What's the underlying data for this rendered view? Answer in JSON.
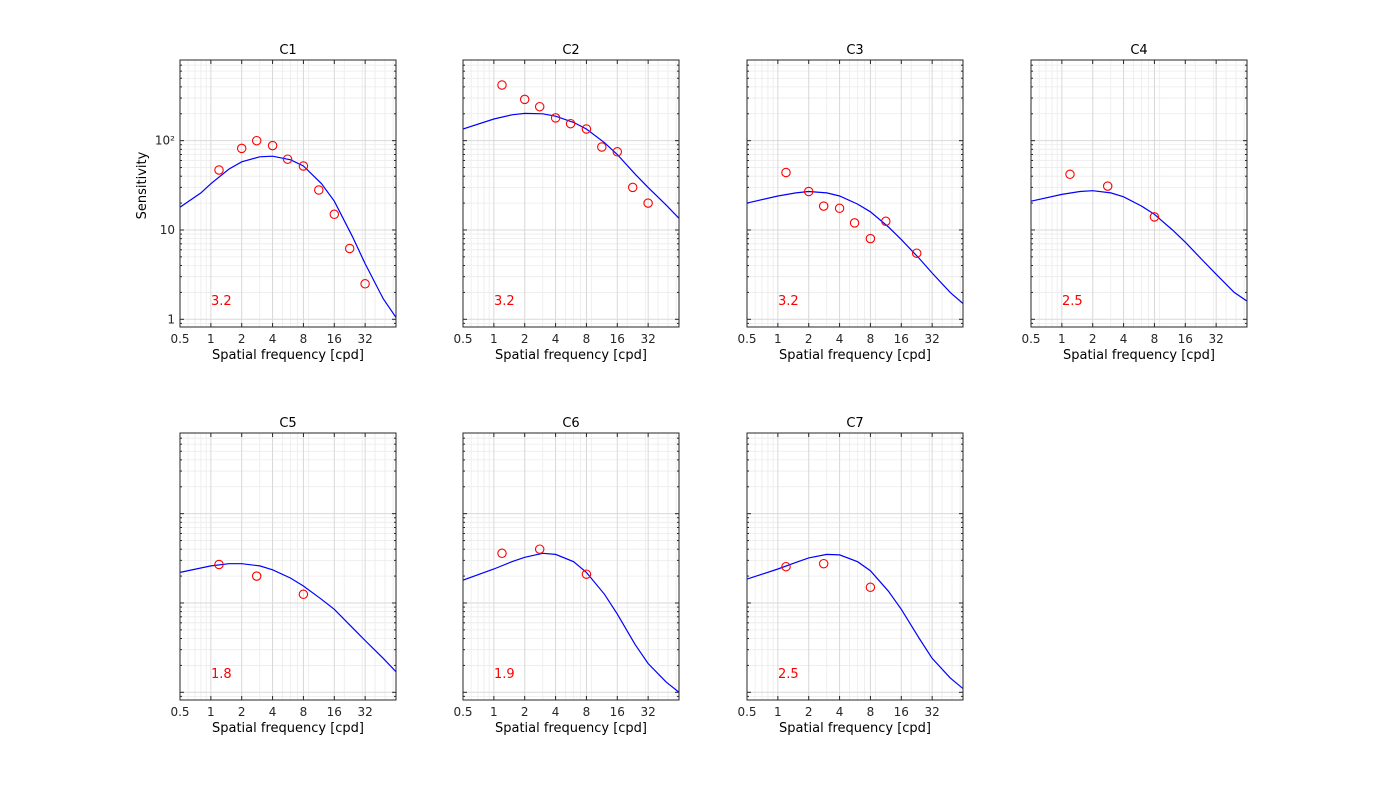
{
  "figure": {
    "xlabel": "Spatial frequency [cpd]",
    "ylabel": "Sensitivity",
    "x_ticks": [
      0.5,
      1,
      2,
      4,
      8,
      16,
      32
    ],
    "x_tick_labels": [
      "0.5",
      "1",
      "2",
      "4",
      "8",
      "16",
      "32"
    ],
    "y_ticks": [
      1,
      10,
      100
    ],
    "y_tick_labels": [
      "1",
      "10",
      "10²"
    ],
    "xscale": "log",
    "yscale": "log",
    "grid": true,
    "colors": {
      "model_line": "#0000ff",
      "measured_points": "#ff0000",
      "annotation": "#ff0000",
      "axes": "#262626"
    }
  },
  "chart_data": [
    {
      "type": "line",
      "title": "C1",
      "annotation": "3.2",
      "xlim": [
        0.5,
        64
      ],
      "ylim": [
        0.82,
        800
      ],
      "show_ylabel": true,
      "show_ytick_labels": true,
      "curve": {
        "x": [
          0.5,
          0.8,
          1,
          1.5,
          2,
          3,
          4,
          6,
          8,
          12,
          16,
          24,
          32,
          48,
          64
        ],
        "y": [
          18,
          26,
          33,
          48,
          58,
          66,
          67,
          61,
          52,
          33,
          21,
          8.5,
          4.2,
          1.7,
          1.05
        ]
      },
      "points": {
        "x": [
          1.2,
          2,
          2.8,
          4,
          5.6,
          8,
          11.3,
          16,
          22.6,
          32
        ],
        "y": [
          47,
          82,
          100,
          88,
          62,
          52,
          28,
          15,
          6.2,
          2.5
        ]
      }
    },
    {
      "type": "line",
      "title": "C2",
      "annotation": "3.2",
      "xlim": [
        0.5,
        64
      ],
      "ylim": [
        0.82,
        800
      ],
      "show_ylabel": false,
      "show_ytick_labels": false,
      "curve": {
        "x": [
          0.5,
          1,
          1.5,
          2,
          3,
          4,
          6,
          8,
          12,
          16,
          24,
          32,
          48,
          64
        ],
        "y": [
          135,
          175,
          195,
          202,
          200,
          188,
          160,
          135,
          95,
          70,
          42,
          30,
          19,
          13.5
        ]
      },
      "points": {
        "x": [
          1.2,
          2,
          2.8,
          4,
          5.6,
          8,
          11.3,
          16,
          22.6,
          32
        ],
        "y": [
          420,
          290,
          240,
          180,
          155,
          135,
          85,
          75,
          30,
          20
        ]
      }
    },
    {
      "type": "line",
      "title": "C3",
      "annotation": "3.2",
      "xlim": [
        0.5,
        64
      ],
      "ylim": [
        0.82,
        800
      ],
      "show_ylabel": false,
      "show_ytick_labels": false,
      "curve": {
        "x": [
          0.5,
          1,
          1.5,
          2,
          3,
          4,
          6,
          8,
          12,
          16,
          24,
          32,
          48,
          64
        ],
        "y": [
          20,
          24,
          26,
          27,
          26,
          24,
          19.5,
          16,
          10.8,
          7.8,
          4.8,
          3.3,
          2.0,
          1.5
        ]
      },
      "points": {
        "x": [
          1.2,
          2,
          2.8,
          4,
          5.6,
          8,
          11.3,
          22.6
        ],
        "y": [
          44,
          27,
          18.5,
          17.5,
          12,
          8,
          12.5,
          5.5
        ]
      }
    },
    {
      "type": "line",
      "title": "C4",
      "annotation": "2.5",
      "xlim": [
        0.5,
        64
      ],
      "ylim": [
        0.82,
        800
      ],
      "show_ylabel": false,
      "show_ytick_labels": false,
      "curve": {
        "x": [
          0.5,
          1,
          1.5,
          2,
          3,
          4,
          6,
          8,
          12,
          16,
          24,
          32,
          48,
          64
        ],
        "y": [
          21,
          25,
          27,
          27.5,
          26,
          23.5,
          18.5,
          15,
          10,
          7.3,
          4.5,
          3.2,
          2.0,
          1.6
        ]
      },
      "points": {
        "x": [
          1.2,
          2.8,
          8
        ],
        "y": [
          42,
          31,
          14
        ]
      }
    },
    {
      "type": "line",
      "title": "C5",
      "annotation": "1.8",
      "xlim": [
        0.5,
        64
      ],
      "ylim": [
        0.82,
        800
      ],
      "show_ylabel": false,
      "show_ytick_labels": false,
      "curve": {
        "x": [
          0.5,
          1,
          1.5,
          2,
          3,
          4,
          6,
          8,
          12,
          16,
          24,
          32,
          48,
          64
        ],
        "y": [
          22,
          26,
          27.5,
          27.5,
          26,
          23.5,
          19,
          15.5,
          11,
          8.5,
          5.3,
          3.8,
          2.4,
          1.7
        ]
      },
      "points": {
        "x": [
          1.2,
          2.8,
          8
        ],
        "y": [
          27,
          20,
          12.5
        ]
      }
    },
    {
      "type": "line",
      "title": "C6",
      "annotation": "1.9",
      "xlim": [
        0.5,
        64
      ],
      "ylim": [
        0.82,
        800
      ],
      "show_ylabel": false,
      "show_ytick_labels": false,
      "curve": {
        "x": [
          0.5,
          1,
          1.5,
          2,
          3,
          4,
          6,
          8,
          12,
          16,
          24,
          32,
          48,
          64
        ],
        "y": [
          18,
          24,
          29,
          32.5,
          36,
          35,
          29,
          22,
          12.5,
          7.5,
          3.4,
          2.1,
          1.3,
          1.0
        ]
      },
      "points": {
        "x": [
          1.2,
          2.8,
          8
        ],
        "y": [
          36,
          40,
          21
        ]
      }
    },
    {
      "type": "line",
      "title": "C7",
      "annotation": "2.5",
      "xlim": [
        0.5,
        64
      ],
      "ylim": [
        0.82,
        800
      ],
      "show_ylabel": false,
      "show_ytick_labels": false,
      "curve": {
        "x": [
          0.5,
          1,
          1.5,
          2,
          3,
          4,
          6,
          8,
          12,
          16,
          24,
          32,
          48,
          64
        ],
        "y": [
          18.5,
          24,
          28.5,
          32,
          35,
          34.5,
          29,
          23,
          13.5,
          8.5,
          4.0,
          2.4,
          1.45,
          1.1
        ]
      },
      "points": {
        "x": [
          1.2,
          2.8,
          8
        ],
        "y": [
          25.5,
          27.5,
          15
        ]
      }
    }
  ]
}
